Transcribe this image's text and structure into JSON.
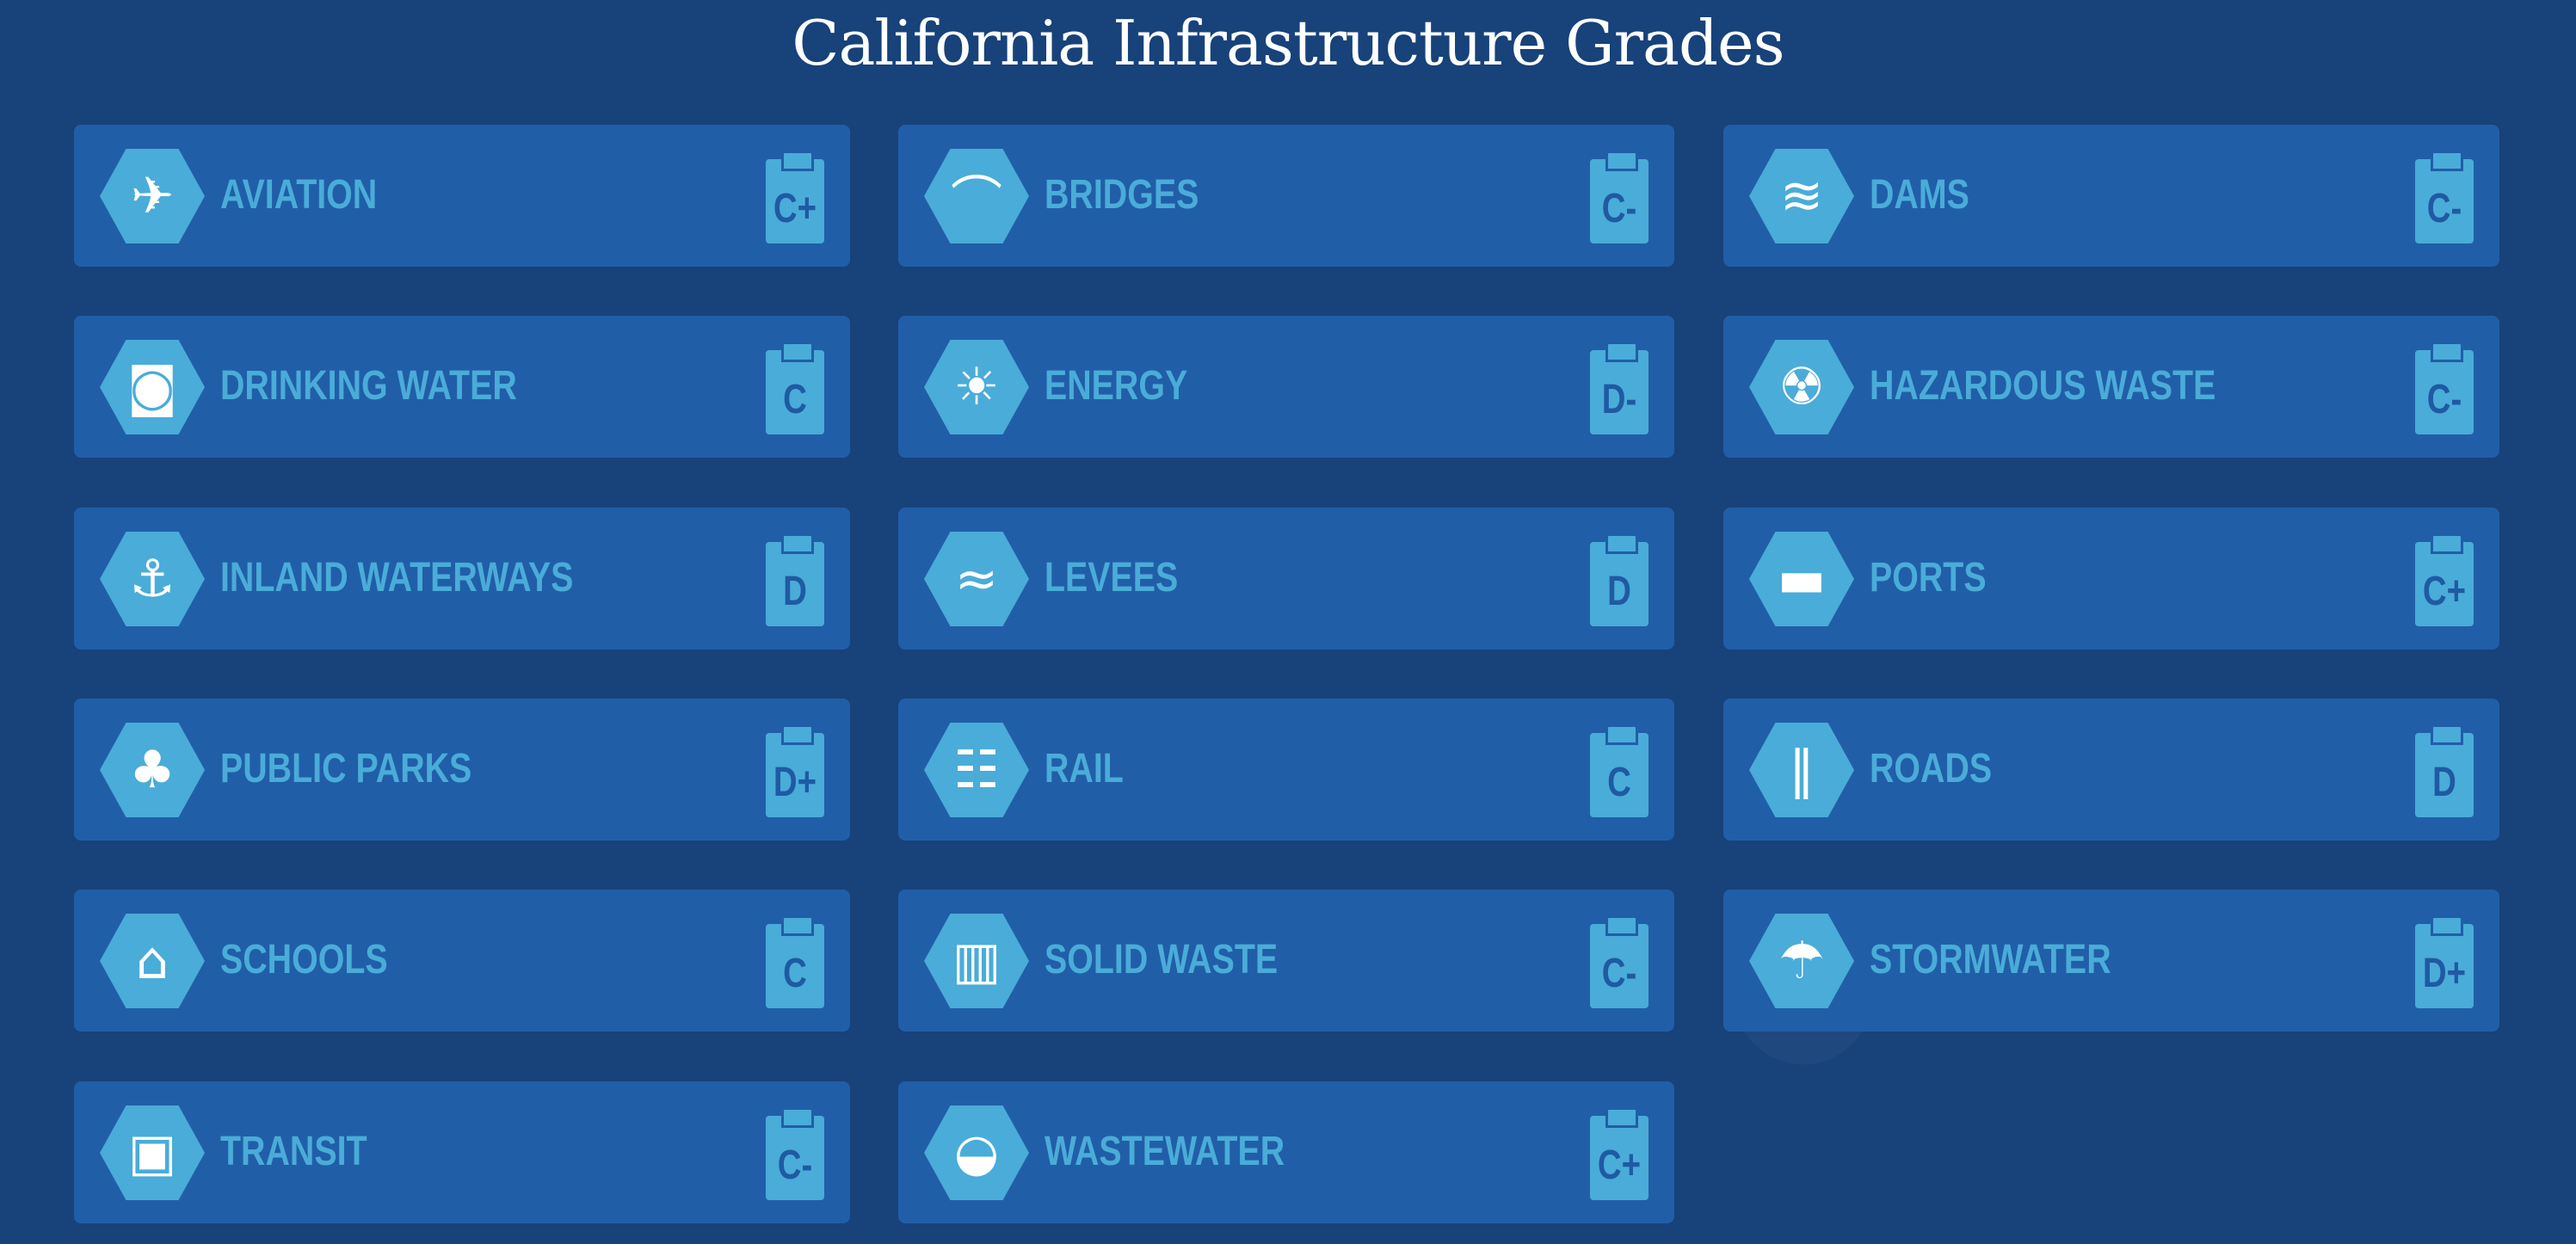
{
  "title": "California Infrastructure Grades",
  "colors": {
    "background": "#17427a",
    "card": "#215ea8",
    "accent": "#4aacd8",
    "grade_text": "#1f5aa3"
  },
  "categories": [
    {
      "label": "AVIATION",
      "grade": "C+",
      "icon": "airplane-icon",
      "glyph": "✈"
    },
    {
      "label": "BRIDGES",
      "grade": "C-",
      "icon": "bridge-icon",
      "glyph": "⌒"
    },
    {
      "label": "DAMS",
      "grade": "C-",
      "icon": "dam-icon",
      "glyph": "≋"
    },
    {
      "label": "DRINKING WATER",
      "grade": "C",
      "icon": "water-glass-icon",
      "glyph": "◙"
    },
    {
      "label": "ENERGY",
      "grade": "D-",
      "icon": "lightbulb-icon",
      "glyph": "☀"
    },
    {
      "label": "HAZARDOUS WASTE",
      "grade": "C-",
      "icon": "hazard-barrel-icon",
      "glyph": "☢"
    },
    {
      "label": "INLAND WATERWAYS",
      "grade": "D",
      "icon": "ship-icon",
      "glyph": "⚓"
    },
    {
      "label": "LEVEES",
      "grade": "D",
      "icon": "levee-icon",
      "glyph": "≈"
    },
    {
      "label": "PORTS",
      "grade": "C+",
      "icon": "cargo-ship-icon",
      "glyph": "▬"
    },
    {
      "label": "PUBLIC PARKS",
      "grade": "D+",
      "icon": "tree-icon",
      "glyph": "♣"
    },
    {
      "label": "RAIL",
      "grade": "C",
      "icon": "rail-track-icon",
      "glyph": "☷"
    },
    {
      "label": "ROADS",
      "grade": "D",
      "icon": "road-icon",
      "glyph": "‖"
    },
    {
      "label": "SCHOOLS",
      "grade": "C",
      "icon": "school-icon",
      "glyph": "⌂"
    },
    {
      "label": "SOLID WASTE",
      "grade": "C-",
      "icon": "trash-can-icon",
      "glyph": "▥"
    },
    {
      "label": "STORMWATER",
      "grade": "D+",
      "icon": "storm-drain-icon",
      "glyph": "☂"
    },
    {
      "label": "TRANSIT",
      "grade": "C-",
      "icon": "bus-icon",
      "glyph": "▣"
    },
    {
      "label": "WASTEWATER",
      "grade": "C+",
      "icon": "toilet-icon",
      "glyph": "◒"
    }
  ]
}
